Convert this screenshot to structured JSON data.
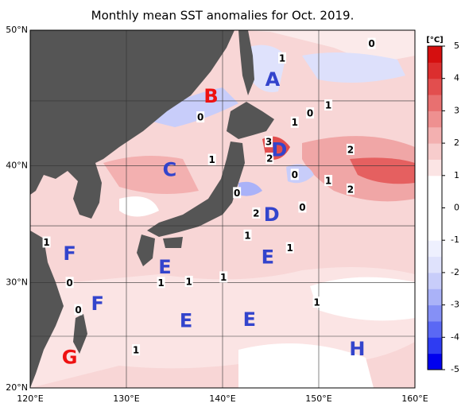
{
  "map": {
    "title": "Monthly mean SST anomalies for Oct. 2019.",
    "lon_range": [
      120,
      160
    ],
    "lat_range": [
      20,
      50
    ],
    "lon_ticks": [
      {
        "value": 120,
        "label": "120°E"
      },
      {
        "value": 130,
        "label": "130°E"
      },
      {
        "value": 140,
        "label": "140°E"
      },
      {
        "value": 150,
        "label": "150°E"
      },
      {
        "value": 160,
        "label": "160°E"
      }
    ],
    "lat_ticks": [
      {
        "value": 20,
        "label": "20°N"
      },
      {
        "value": 30,
        "label": "30°N"
      },
      {
        "value": 40,
        "label": "40°N"
      },
      {
        "value": 50,
        "label": "50°N"
      }
    ],
    "grid_lats": [
      25,
      35,
      45
    ],
    "regions": [
      {
        "label": "A",
        "lon": 145.2,
        "lat": 46.5,
        "color": "#3344cc"
      },
      {
        "label": "B",
        "lon": 138.8,
        "lat": 45.3,
        "color": "#ee1111"
      },
      {
        "label": "C",
        "lon": 134.5,
        "lat": 39.6,
        "color": "#3344cc"
      },
      {
        "label": "D",
        "lon": 145.9,
        "lat": 41.2,
        "color": "#3344cc"
      },
      {
        "label": "D",
        "lon": 145.1,
        "lat": 35.9,
        "color": "#3344cc"
      },
      {
        "label": "E",
        "lon": 134.0,
        "lat": 31.3,
        "color": "#3344cc"
      },
      {
        "label": "E",
        "lon": 144.7,
        "lat": 32.2,
        "color": "#3344cc"
      },
      {
        "label": "E",
        "lon": 136.2,
        "lat": 26.4,
        "color": "#3344cc"
      },
      {
        "label": "E",
        "lon": 142.8,
        "lat": 26.5,
        "color": "#3344cc"
      },
      {
        "label": "F",
        "lon": 124.1,
        "lat": 32.5,
        "color": "#3344cc"
      },
      {
        "label": "F",
        "lon": 127.0,
        "lat": 28.0,
        "color": "#3344cc"
      },
      {
        "label": "G",
        "lon": 124.1,
        "lat": 22.9,
        "color": "#ee1111"
      },
      {
        "label": "H",
        "lon": 154.0,
        "lat": 23.7,
        "color": "#3344cc"
      }
    ],
    "contour_labels": [
      {
        "value": 1,
        "lon": 146.2,
        "lat": 48.1
      },
      {
        "value": 0,
        "lon": 155.5,
        "lat": 49.1
      },
      {
        "value": 1,
        "lon": 151.0,
        "lat": 44.7
      },
      {
        "value": 0,
        "lon": 149.1,
        "lat": 44.1
      },
      {
        "value": 1,
        "lon": 147.5,
        "lat": 43.4
      },
      {
        "value": 0,
        "lon": 137.7,
        "lat": 43.8
      },
      {
        "value": 3,
        "lon": 144.8,
        "lat": 41.9
      },
      {
        "value": 2,
        "lon": 144.9,
        "lat": 40.6
      },
      {
        "value": 2,
        "lon": 153.3,
        "lat": 41.3
      },
      {
        "value": 1,
        "lon": 138.9,
        "lat": 40.5
      },
      {
        "value": 0,
        "lon": 147.5,
        "lat": 39.3
      },
      {
        "value": 1,
        "lon": 151.0,
        "lat": 38.8
      },
      {
        "value": 2,
        "lon": 153.3,
        "lat": 38.1
      },
      {
        "value": 0,
        "lon": 141.5,
        "lat": 37.8
      },
      {
        "value": 2,
        "lon": 143.5,
        "lat": 36.1
      },
      {
        "value": 0,
        "lon": 148.3,
        "lat": 36.6
      },
      {
        "value": 1,
        "lon": 142.6,
        "lat": 34.2
      },
      {
        "value": 1,
        "lon": 147.0,
        "lat": 33.1
      },
      {
        "value": 1,
        "lon": 121.7,
        "lat": 33.6
      },
      {
        "value": 0,
        "lon": 124.1,
        "lat": 30.0
      },
      {
        "value": 1,
        "lon": 133.6,
        "lat": 30.0
      },
      {
        "value": 1,
        "lon": 136.5,
        "lat": 30.1
      },
      {
        "value": 1,
        "lon": 140.1,
        "lat": 30.5
      },
      {
        "value": 0,
        "lon": 125.0,
        "lat": 27.5
      },
      {
        "value": 1,
        "lon": 149.8,
        "lat": 28.2
      },
      {
        "value": 1,
        "lon": 131.0,
        "lat": 23.7
      }
    ],
    "colorbar": {
      "unit": "[°C]",
      "ticks": [
        -5,
        -4,
        -3,
        -2,
        -1,
        0,
        1,
        2,
        3,
        4,
        5
      ],
      "colors": [
        "#0000ee",
        "#2e3cf2",
        "#5a68f4",
        "#8590f6",
        "#aab2f8",
        "#c8cdfa",
        "#dfe2fc",
        "#eef0fe",
        "#ffffff",
        "#ffffff",
        "#ffffff",
        "#ffffff",
        "#fbe4e4",
        "#f7cccc",
        "#f3b0b0",
        "#ee9090",
        "#e87070",
        "#e24e4e",
        "#dc2e2e",
        "#d50f0f"
      ]
    }
  }
}
